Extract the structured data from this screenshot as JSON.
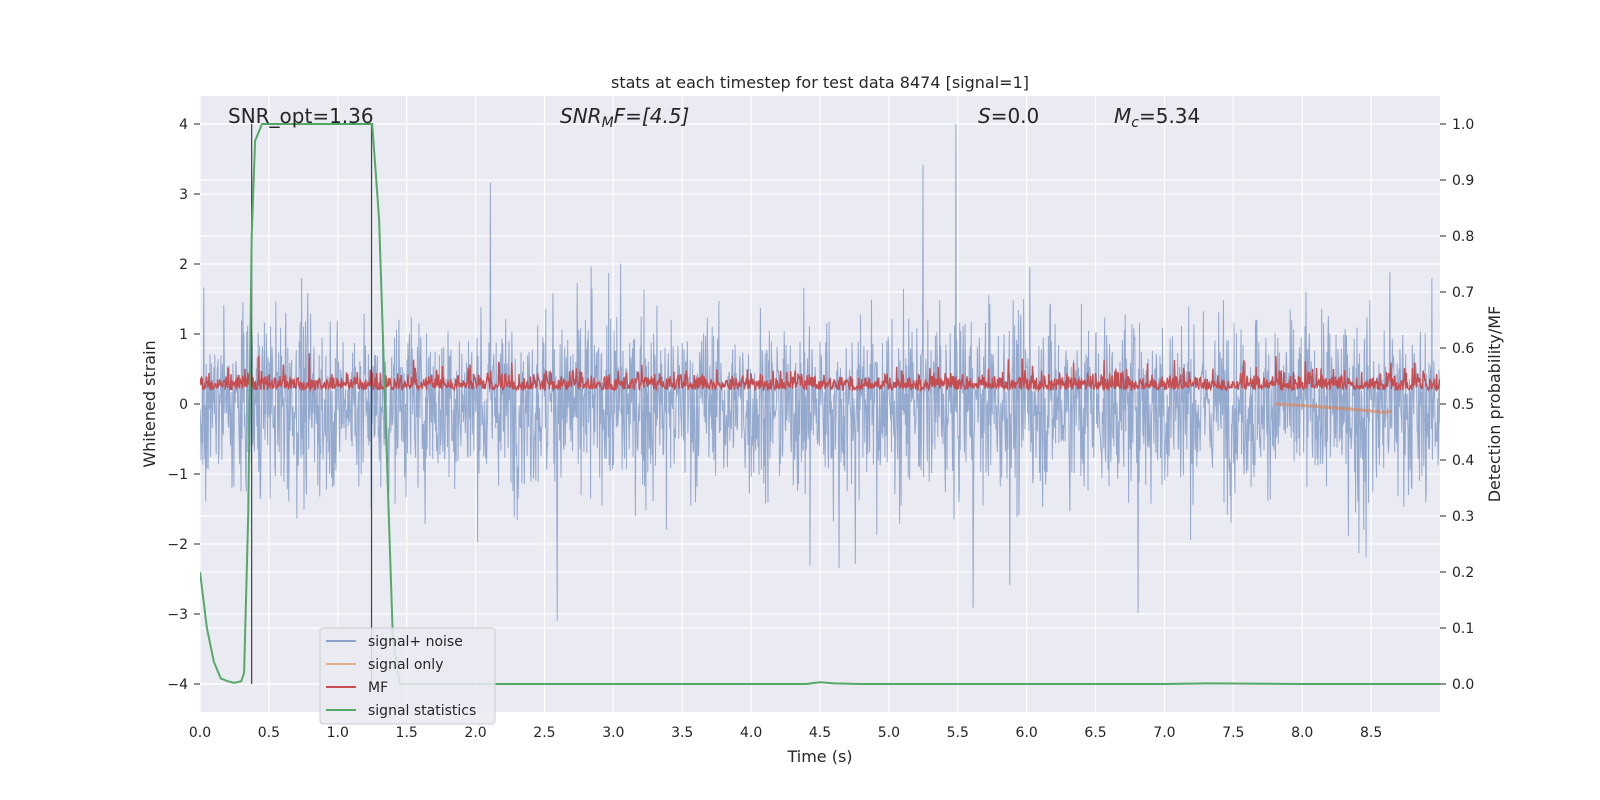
{
  "chart_data": {
    "type": "line",
    "title": "stats at each timestep for test data 8474 [signal=1]",
    "xlabel": "Time (s)",
    "ylabel": "Whitened strain",
    "ylabel_right": "Detection probability/MF",
    "xlim": [
      0.0,
      9.0
    ],
    "ylim": [
      -4.4,
      4.4
    ],
    "ylim_right": [
      -0.05,
      1.05
    ],
    "x_ticks": [
      "0.0",
      "0.5",
      "1.0",
      "1.5",
      "2.0",
      "2.5",
      "3.0",
      "3.5",
      "4.0",
      "4.5",
      "5.0",
      "5.5",
      "6.0",
      "6.5",
      "7.0",
      "7.5",
      "8.0",
      "8.5"
    ],
    "y_ticks": [
      "4",
      "3",
      "2",
      "1",
      "0",
      "−1",
      "−2",
      "−3",
      "−4"
    ],
    "y_ticks_right": [
      "1.0",
      "0.9",
      "0.8",
      "0.7",
      "0.6",
      "0.5",
      "0.4",
      "0.3",
      "0.2",
      "0.1",
      "0.0"
    ],
    "annotations": {
      "snr_opt": "SNR_opt=1.36",
      "snr_mf_prefix": "SNR",
      "snr_mf_sub": "M",
      "snr_mf_suffix": "F=[4.5]",
      "s_label": "S",
      "s_value": "=0.0",
      "mc_label": "M",
      "mc_sub": "c",
      "mc_value": "=5.34"
    },
    "vertical_markers": [
      0.375,
      1.245
    ],
    "series": [
      {
        "name": "signal+ noise",
        "axis": "left",
        "color": "#4c72b0",
        "noise_sigma": 0.8,
        "noise_peak": 4.0
      },
      {
        "name": "signal only",
        "axis": "left",
        "color": "#dd8452",
        "x": [
          7.8,
          8.0,
          8.2,
          8.4,
          8.6,
          8.65
        ],
        "y": [
          0.0,
          -0.02,
          -0.05,
          -0.08,
          -0.12,
          -0.1
        ]
      },
      {
        "name": "MF",
        "axis": "right",
        "color": "#c44e52",
        "baseline": 0.53,
        "noise_peak": 0.61
      },
      {
        "name": "signal statistics",
        "axis": "right",
        "color": "#55a868",
        "x": [
          0.0,
          0.05,
          0.1,
          0.15,
          0.2,
          0.25,
          0.3,
          0.32,
          0.35,
          0.375,
          0.4,
          0.45,
          0.6,
          0.8,
          1.0,
          1.2,
          1.25,
          1.3,
          1.35,
          1.4,
          1.45,
          1.6,
          2.0,
          3.0,
          4.0,
          4.4,
          4.5,
          4.6,
          4.8,
          6.0,
          7.0,
          7.3,
          8.0,
          9.0
        ],
        "y": [
          0.2,
          0.1,
          0.04,
          0.01,
          0.005,
          0.002,
          0.005,
          0.02,
          0.3,
          0.8,
          0.97,
          1.0,
          1.0,
          1.0,
          1.0,
          1.0,
          1.0,
          0.83,
          0.45,
          0.08,
          0.0,
          0.0,
          0.0,
          0.0,
          0.0,
          0.0,
          0.003,
          0.001,
          0.0,
          0.0,
          0.0,
          0.001,
          0.0,
          0.0
        ]
      }
    ],
    "legend": {
      "placement": "lower-left",
      "entries": [
        "signal+ noise",
        "signal only",
        "MF",
        "signal statistics"
      ]
    }
  }
}
